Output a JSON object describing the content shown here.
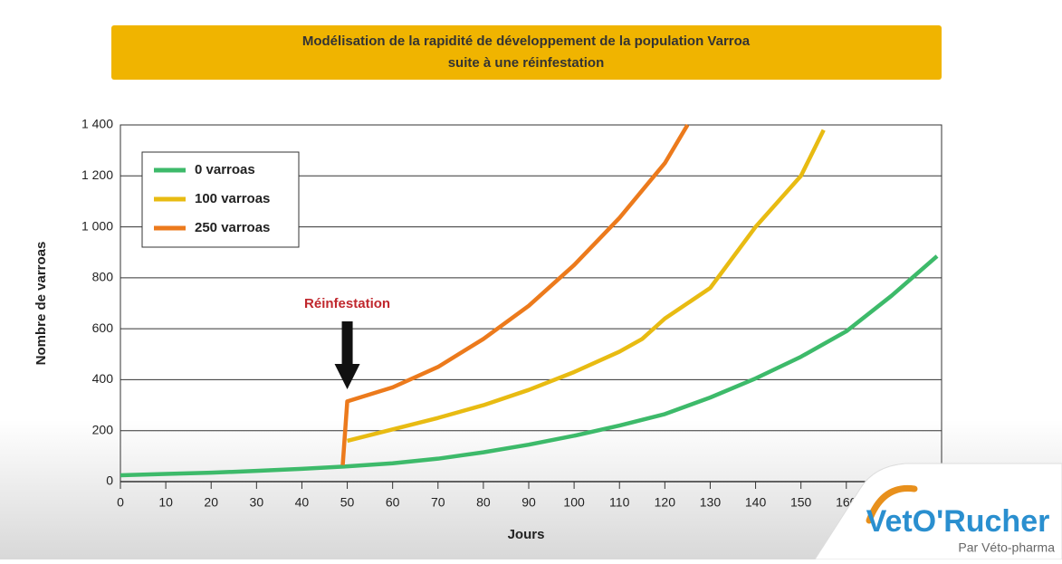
{
  "chart_data": {
    "type": "line",
    "title": "Modélisation de la rapidité de développement de la population Varroa",
    "subtitle": "suite à une réinfestation",
    "x_label": "Jours",
    "y_label": "Nombre de varroas",
    "annotation": "Réinfestation",
    "annotation_x": 50,
    "xlim": [
      0,
      180
    ],
    "xticks": [
      0,
      10,
      20,
      30,
      40,
      50,
      60,
      70,
      80,
      90,
      100,
      110,
      120,
      130,
      140,
      150,
      160
    ],
    "ylim": [
      0,
      1400
    ],
    "yticks": [
      0,
      200,
      400,
      600,
      800,
      {
        "value": 1000,
        "label": "1 000"
      },
      {
        "value": 1200,
        "label": "1 200"
      },
      {
        "value": 1400,
        "label": "1 400"
      }
    ],
    "grid": true,
    "legend": "upper left",
    "series": [
      {
        "name": "0 varroas",
        "color": "#3dba6a",
        "x": [
          0,
          10,
          20,
          30,
          40,
          50,
          60,
          70,
          80,
          90,
          100,
          110,
          120,
          130,
          140,
          150,
          160,
          170,
          180
        ],
        "values": [
          25,
          30,
          35,
          42,
          50,
          60,
          72,
          90,
          115,
          145,
          180,
          220,
          265,
          330,
          405,
          490,
          590,
          730,
          885
        ]
      },
      {
        "name": "100 varroas",
        "color": "#e8bb12",
        "x": [
          50,
          60,
          70,
          80,
          90,
          100,
          110,
          115,
          120,
          130,
          140,
          150,
          155
        ],
        "values": [
          160,
          205,
          250,
          300,
          360,
          430,
          510,
          560,
          640,
          760,
          1000,
          1200,
          1380
        ]
      },
      {
        "name": "250 varroas",
        "color": "#ec7a1c",
        "x": [
          49,
          50,
          60,
          70,
          80,
          90,
          100,
          110,
          120,
          125
        ],
        "values": [
          65,
          315,
          370,
          450,
          560,
          690,
          850,
          1035,
          1250,
          1400
        ]
      }
    ]
  },
  "logo": {
    "name": "VetO'Rucher",
    "tagline": "Par Véto-pharma"
  }
}
